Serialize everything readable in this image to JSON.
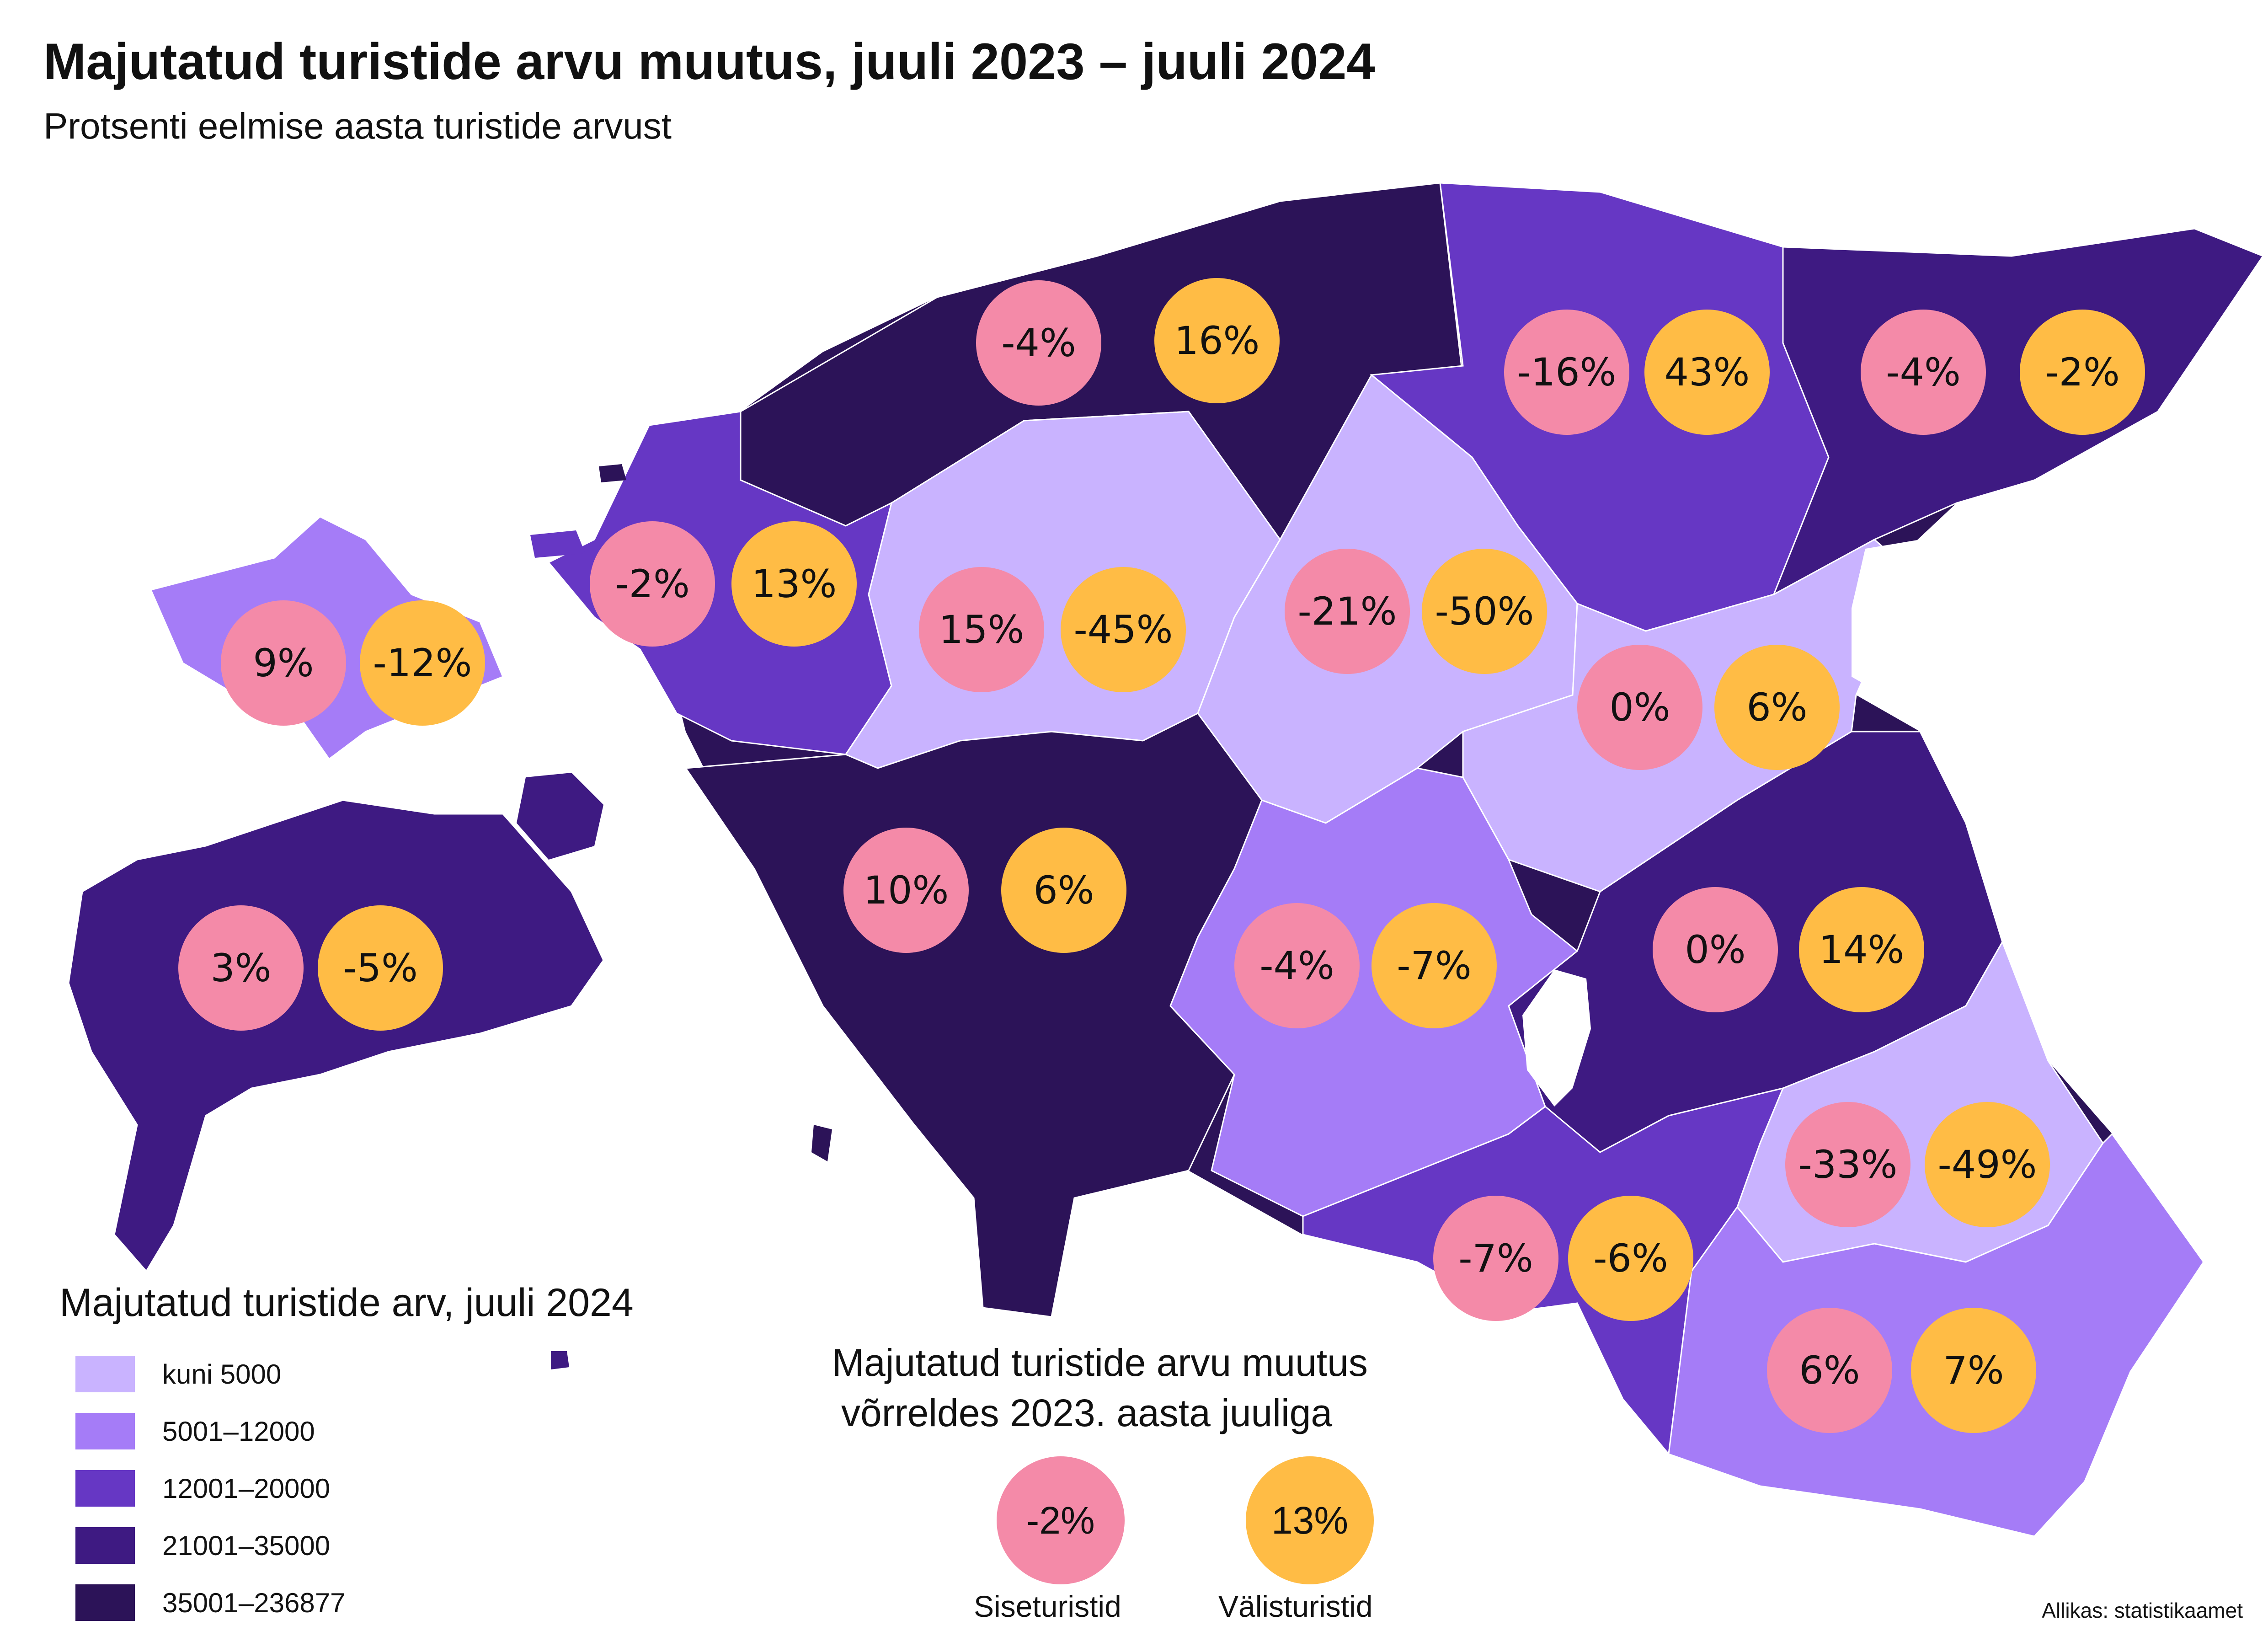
{
  "title": "Majutatud turistide arvu muutus, juuli 2023 –  juuli 2024",
  "subtitle": "Protsenti eelmise aasta turistide arvust",
  "colors": {
    "domestic": "#F48AA8",
    "foreign": "#FFBC45",
    "class_1": "#C9B3FF",
    "class_2": "#A57CF7",
    "class_3": "#6637C4",
    "class_4": "#3E1A82",
    "class_5": "#2C1358",
    "water": "#FFFFFF"
  },
  "legend": {
    "title": "Majutatud turistide arv, juuli 2024",
    "classes": [
      {
        "label": "kuni 5000",
        "color": "#C9B3FF"
      },
      {
        "label": "5001–12000",
        "color": "#A57CF7"
      },
      {
        "label": "12001–20000",
        "color": "#6637C4"
      },
      {
        "label": "21001–35000",
        "color": "#3E1A82"
      },
      {
        "label": "35001–236877",
        "color": "#2C1358"
      }
    ]
  },
  "change_legend": {
    "title_line1": "Majutatud turistide arvu muutus",
    "title_line2": "võrreldes 2023. aasta juuliga",
    "domestic_example": "-2%",
    "foreign_example": "13%",
    "domestic_label": "Siseturistid",
    "foreign_label": "Välisturistid"
  },
  "source": "Allikas: statistikaamet",
  "regions": [
    {
      "domestic": "-4%",
      "foreign": "16%",
      "class": 5
    },
    {
      "domestic": "-16%",
      "foreign": "43%",
      "class": 3
    },
    {
      "domestic": "-4%",
      "foreign": "-2%",
      "class": 4
    },
    {
      "domestic": "9%",
      "foreign": "-12%",
      "class": 2
    },
    {
      "domestic": "-2%",
      "foreign": "13%",
      "class": 3
    },
    {
      "domestic": "15%",
      "foreign": "-45%",
      "class": 1
    },
    {
      "domestic": "-21%",
      "foreign": "-50%",
      "class": 1
    },
    {
      "domestic": "0%",
      "foreign": "6%",
      "class": 1
    },
    {
      "domestic": "3%",
      "foreign": "-5%",
      "class": 4
    },
    {
      "domestic": "10%",
      "foreign": "6%",
      "class": 5
    },
    {
      "domestic": "-4%",
      "foreign": "-7%",
      "class": 2
    },
    {
      "domestic": "0%",
      "foreign": "14%",
      "class": 4
    },
    {
      "domestic": "-33%",
      "foreign": "-49%",
      "class": 1
    },
    {
      "domestic": "-7%",
      "foreign": "-6%",
      "class": 3
    },
    {
      "domestic": "6%",
      "foreign": "7%",
      "class": 2
    }
  ]
}
